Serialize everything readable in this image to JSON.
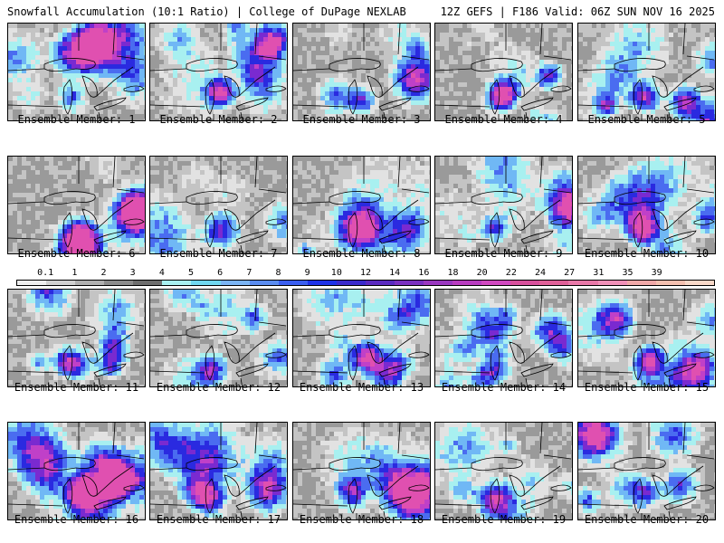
{
  "header": {
    "left": "Snowfall Accumulation (10:1 Ratio) | College of DuPage NEXLAB",
    "right": "12Z GEFS | F186 Valid: 06Z SUN NOV 16 2025"
  },
  "members": [
    "Ensemble Member: 1",
    "Ensemble Member: 2",
    "Ensemble Member: 3",
    "Ensemble Member: 4",
    "Ensemble Member: 5",
    "Ensemble Member: 6",
    "Ensemble Member: 7",
    "Ensemble Member: 8",
    "Ensemble Member: 9",
    "Ensemble Member: 10",
    "Ensemble Member: 11",
    "Ensemble Member: 12",
    "Ensemble Member: 13",
    "Ensemble Member: 14",
    "Ensemble Member: 15",
    "Ensemble Member: 16",
    "Ensemble Member: 17",
    "Ensemble Member: 18",
    "Ensemble Member: 19",
    "Ensemble Member: 20"
  ],
  "colorbar": {
    "labels": [
      "0.1",
      "1",
      "2",
      "3",
      "4",
      "5",
      "6",
      "7",
      "8",
      "9",
      "10",
      "12",
      "14",
      "16",
      "18",
      "20",
      "22",
      "24",
      "27",
      "31",
      "35",
      "39"
    ],
    "colors": [
      "#eeeeee",
      "#d0d0d0",
      "#b0b0b0",
      "#8c8c8c",
      "#6e6e6e",
      "#a8f0f0",
      "#70d8f0",
      "#7ab4f5",
      "#5a8cf0",
      "#3a5ef0",
      "#1e32e8",
      "#3a2acc",
      "#5a2ac0",
      "#7a30c0",
      "#9a38c0",
      "#b83cc0",
      "#d048c0",
      "#d8509c",
      "#e06098",
      "#e878a8",
      "#f090b8",
      "#f0a8a8",
      "#f4c0b0",
      "#f8d8c8"
    ]
  },
  "snow_colors": [
    "#9a9a9a",
    "#c4c4c4",
    "#e2e2e2",
    "#a8f0f0",
    "#70b8f5",
    "#4a6cf0",
    "#2a2ae0",
    "#7a2ad0",
    "#c040c8",
    "#e050b0"
  ]
}
